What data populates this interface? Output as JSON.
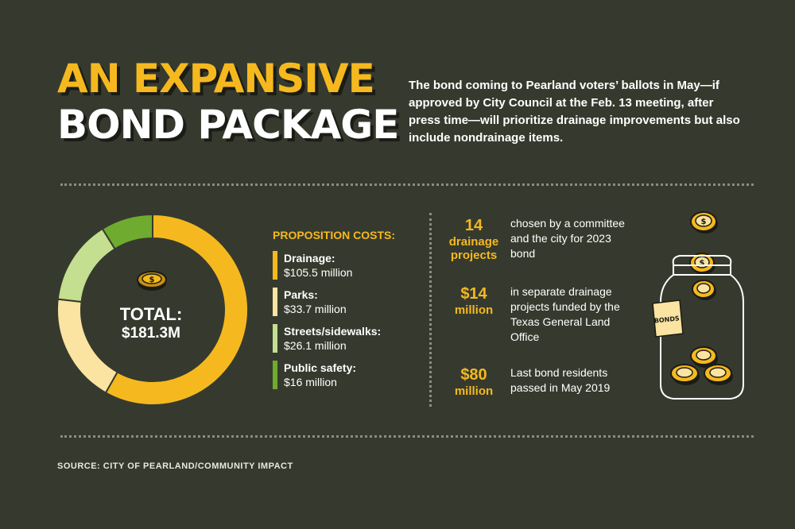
{
  "header": {
    "title_line1": "AN EXPANSIVE",
    "title_line2": "BOND PACKAGE",
    "intro": "The bond coming to Pearland voters’ ballots in May—if approved by City Council at the Feb. 13 meeting, after press time—will prioritize drainage improvements but also include nondrainage items."
  },
  "total": {
    "label": "TOTAL:",
    "value": "$181.3M"
  },
  "legend": {
    "title": "PROPOSITION COSTS:",
    "items": [
      {
        "name": "Drainage:",
        "value": "$105.5 million",
        "color": "#f5b91f"
      },
      {
        "name": "Parks:",
        "value": "$33.7 million",
        "color": "#fbe3a1"
      },
      {
        "name": "Streets/sidewalks:",
        "value": "$26.1 million",
        "color": "#c3df8f"
      },
      {
        "name": "Public safety:",
        "value": "$16 million",
        "color": "#6fab2f"
      }
    ]
  },
  "chart_data": {
    "type": "pie",
    "variant": "donut",
    "title": "PROPOSITION COSTS:",
    "unit": "$ million",
    "total": 181.3,
    "categories": [
      "Drainage",
      "Parks",
      "Streets/sidewalks",
      "Public safety"
    ],
    "values": [
      105.5,
      33.7,
      26.1,
      16
    ],
    "colors": [
      "#f5b91f",
      "#fbe3a1",
      "#c3df8f",
      "#6fab2f"
    ]
  },
  "facts": [
    {
      "num_big": "14",
      "num_small": "drainage projects",
      "text": "chosen by a committee and the city for 2023 bond"
    },
    {
      "num_big": "$14",
      "num_small": "million",
      "text": "in separate drainage projects funded by the Texas General Land Office"
    },
    {
      "num_big": "$80",
      "num_small": "million",
      "text": "Last bond residents passed in May 2019"
    }
  ],
  "jar": {
    "label": "BONDS"
  },
  "source": "SOURCE: CITY OF PEARLAND/COMMUNITY IMPACT"
}
